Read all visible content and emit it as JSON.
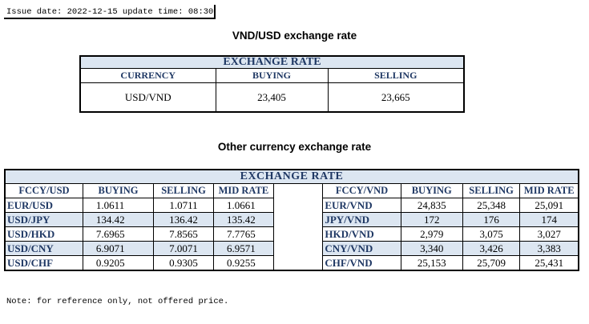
{
  "issue_line": "Issue date: 2022-12-15 update time: 08:30",
  "vnd_usd": {
    "heading": "VND/USD exchange rate",
    "banner": "EXCHANGE RATE",
    "columns": [
      "CURRENCY",
      "BUYING",
      "SELLING"
    ],
    "row": [
      "USD/VND",
      "23,405",
      "23,665"
    ]
  },
  "other": {
    "heading": "Other currency exchange rate",
    "banner": "EXCHANGE  RATE",
    "left_columns": [
      "FCCY/USD",
      "BUYING",
      "SELLING",
      "MID RATE"
    ],
    "right_columns": [
      "FCCY/VND",
      "BUYING",
      "SELLING",
      "MID RATE"
    ],
    "left_rows": [
      [
        "EUR/USD",
        "1.0611",
        "1.0711",
        "1.0661"
      ],
      [
        "USD/JPY",
        "134.42",
        "136.42",
        "135.42"
      ],
      [
        "USD/HKD",
        "7.6965",
        "7.8565",
        "7.7765"
      ],
      [
        "USD/CNY",
        "6.9071",
        "7.0071",
        "6.9571"
      ],
      [
        "USD/CHF",
        "0.9205",
        "0.9305",
        "0.9255"
      ]
    ],
    "right_rows": [
      [
        "EUR/VND",
        "24,835",
        "25,348",
        "25,091"
      ],
      [
        "JPY/VND",
        "172",
        "176",
        "174"
      ],
      [
        "HKD/VND",
        "2,979",
        "3,075",
        "3,027"
      ],
      [
        "CNY/VND",
        "3,340",
        "3,426",
        "3,383"
      ],
      [
        "CHF/VND",
        "25,153",
        "25,709",
        "25,431"
      ]
    ]
  },
  "note": "Note: for reference only, not offered price.",
  "colors": {
    "header_fill": "#dce6f1",
    "header_text": "#1f3864"
  }
}
